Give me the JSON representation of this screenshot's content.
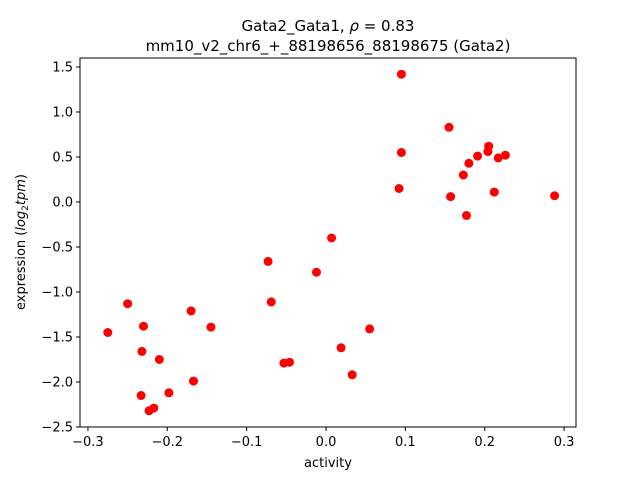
{
  "chart_data": {
    "type": "scatter",
    "title_line1": "Gata2_Gata1, ",
    "title_rho_symbol": "ρ",
    "title_rho_value": " = 0.83",
    "title_line2": "mm10_v2_chr6_+_88198656_88198675 (Gata2)",
    "xlabel": "activity",
    "ylabel_prefix": "expression (",
    "ylabel_math": "log",
    "ylabel_sub": "2",
    "ylabel_math2": "tpm",
    "ylabel_suffix": ")",
    "xlim": [
      -0.31,
      0.315
    ],
    "ylim": [
      -2.5,
      1.6
    ],
    "xticks": [
      -0.3,
      -0.2,
      -0.1,
      0.0,
      0.1,
      0.2,
      0.3
    ],
    "xtick_labels": [
      "−0.3",
      "−0.2",
      "−0.1",
      "0.0",
      "0.1",
      "0.2",
      "0.3"
    ],
    "yticks": [
      -2.5,
      -2.0,
      -1.5,
      -1.0,
      -0.5,
      0.0,
      0.5,
      1.0,
      1.5
    ],
    "ytick_labels": [
      "−2.5",
      "−2.0",
      "−1.5",
      "−1.0",
      "−0.5",
      "0.0",
      "0.5",
      "1.0",
      "1.5"
    ],
    "grid": false,
    "marker_color": "#ff0000",
    "points": [
      {
        "x": -0.275,
        "y": -1.45
      },
      {
        "x": -0.25,
        "y": -1.13
      },
      {
        "x": -0.23,
        "y": -1.38
      },
      {
        "x": -0.232,
        "y": -1.66
      },
      {
        "x": -0.21,
        "y": -1.75
      },
      {
        "x": -0.233,
        "y": -2.15
      },
      {
        "x": -0.223,
        "y": -2.32
      },
      {
        "x": -0.217,
        "y": -2.29
      },
      {
        "x": -0.198,
        "y": -2.12
      },
      {
        "x": -0.17,
        "y": -1.21
      },
      {
        "x": -0.167,
        "y": -1.99
      },
      {
        "x": -0.145,
        "y": -1.39
      },
      {
        "x": -0.073,
        "y": -0.66
      },
      {
        "x": -0.069,
        "y": -1.11
      },
      {
        "x": -0.053,
        "y": -1.79
      },
      {
        "x": -0.046,
        "y": -1.78
      },
      {
        "x": -0.012,
        "y": -0.78
      },
      {
        "x": 0.007,
        "y": -0.4
      },
      {
        "x": 0.019,
        "y": -1.62
      },
      {
        "x": 0.033,
        "y": -1.92
      },
      {
        "x": 0.055,
        "y": -1.41
      },
      {
        "x": 0.092,
        "y": 0.15
      },
      {
        "x": 0.095,
        "y": 0.55
      },
      {
        "x": 0.095,
        "y": 1.42
      },
      {
        "x": 0.155,
        "y": 0.83
      },
      {
        "x": 0.157,
        "y": 0.06
      },
      {
        "x": 0.173,
        "y": 0.3
      },
      {
        "x": 0.177,
        "y": -0.15
      },
      {
        "x": 0.18,
        "y": 0.43
      },
      {
        "x": 0.191,
        "y": 0.51
      },
      {
        "x": 0.204,
        "y": 0.56
      },
      {
        "x": 0.205,
        "y": 0.62
      },
      {
        "x": 0.212,
        "y": 0.11
      },
      {
        "x": 0.217,
        "y": 0.49
      },
      {
        "x": 0.226,
        "y": 0.52
      },
      {
        "x": 0.288,
        "y": 0.07
      }
    ]
  }
}
